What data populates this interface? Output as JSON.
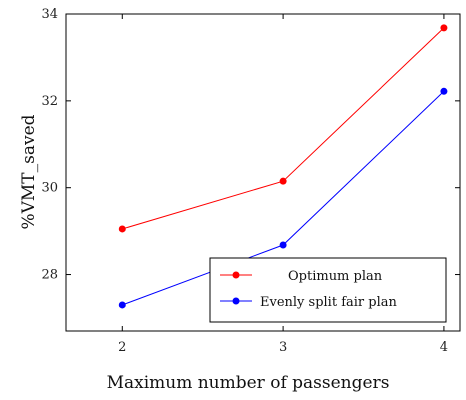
{
  "chart_data": {
    "type": "line",
    "xlabel": "Maximum number of passengers",
    "ylabel": "%VMT_saved",
    "x": [
      2,
      3,
      4
    ],
    "xticks": [
      "2",
      "3",
      "4"
    ],
    "yticks": [
      "28",
      "30",
      "32",
      "34"
    ],
    "xlim": [
      1.65,
      4.1
    ],
    "ylim": [
      26.7,
      34.0
    ],
    "grid": false,
    "legend_position": "bottom-right",
    "series": [
      {
        "name": "Optimum plan",
        "values": [
          29.05,
          30.15,
          33.68
        ],
        "color": "#ff0000"
      },
      {
        "name": "Evenly split fair plan",
        "values": [
          27.3,
          28.68,
          32.22
        ],
        "color": "#0000ff"
      }
    ]
  }
}
